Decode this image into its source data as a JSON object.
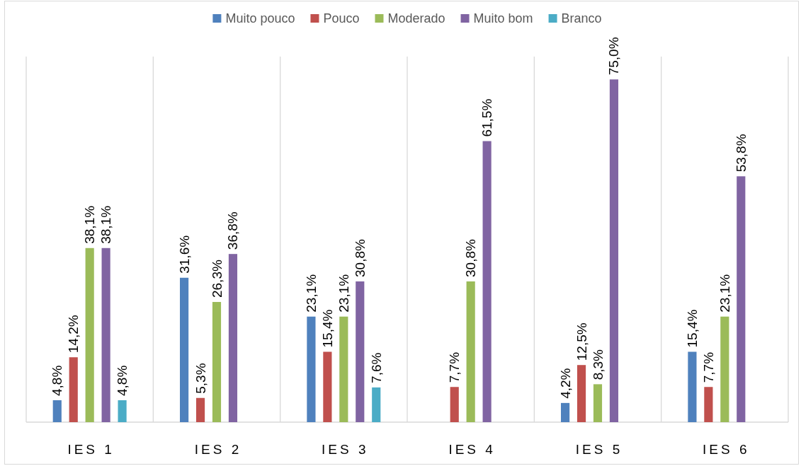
{
  "chart_data": {
    "type": "bar",
    "categories": [
      "IES 1",
      "IES 2",
      "IES 3",
      "IES 4",
      "IES 5",
      "IES 6"
    ],
    "series": [
      {
        "name": "Muito pouco",
        "color": "#4f81bd",
        "values": [
          4.8,
          31.6,
          23.1,
          null,
          4.2,
          15.4
        ],
        "value_labels": [
          "4,8%",
          "31,6%",
          "23,1%",
          null,
          "4,2%",
          "15,4%"
        ]
      },
      {
        "name": "Pouco",
        "color": "#c0504d",
        "values": [
          14.2,
          5.3,
          15.4,
          7.7,
          12.5,
          7.7
        ],
        "value_labels": [
          "14,2%",
          "5,3%",
          "15,4%",
          "7,7%",
          "12,5%",
          "7,7%"
        ]
      },
      {
        "name": "Moderado",
        "color": "#9bbb59",
        "values": [
          38.1,
          26.3,
          23.1,
          30.8,
          8.3,
          23.1
        ],
        "value_labels": [
          "38,1%",
          "26,3%",
          "23,1%",
          "30,8%",
          "8,3%",
          "23,1%"
        ]
      },
      {
        "name": "Muito bom",
        "color": "#8064a2",
        "values": [
          38.1,
          36.8,
          30.8,
          61.5,
          75.0,
          53.8
        ],
        "value_labels": [
          "38,1%",
          "36,8%",
          "30,8%",
          "61,5%",
          "75,0%",
          "53,8%"
        ]
      },
      {
        "name": "Branco",
        "color": "#4bacc6",
        "values": [
          4.8,
          null,
          7.6,
          null,
          null,
          null
        ],
        "value_labels": [
          "4,8%",
          null,
          "7,6%",
          null,
          null,
          null
        ]
      }
    ],
    "ylim": [
      0,
      80
    ],
    "grid": "x",
    "legend": "top",
    "tick_labels": "x"
  }
}
